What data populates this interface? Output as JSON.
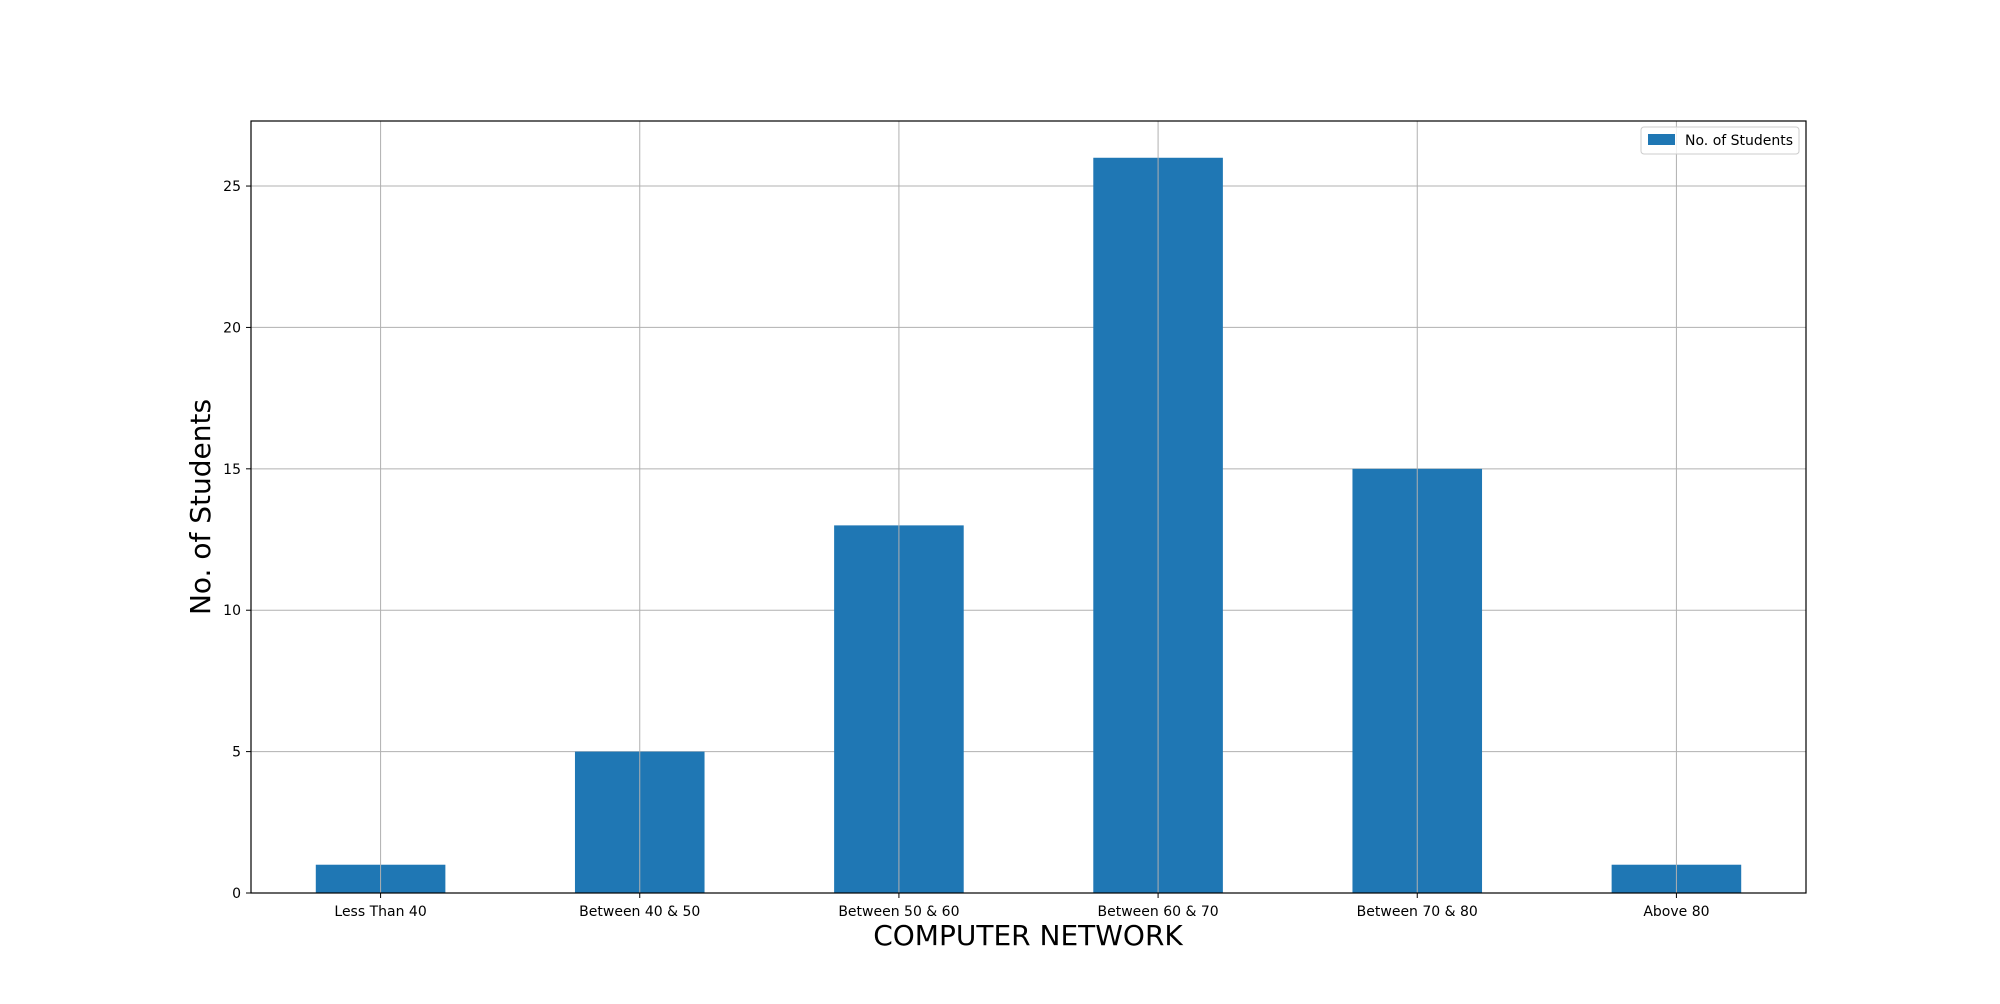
{
  "chart_data": {
    "type": "bar",
    "categories": [
      "Less Than 40",
      "Between 40 & 50",
      "Between 50 & 60",
      "Between 60 & 70",
      "Between 70 & 80",
      "Above 80"
    ],
    "series": [
      {
        "name": "No. of Students",
        "values": [
          1,
          5,
          13,
          26,
          15,
          1
        ]
      }
    ],
    "xlabel": "COMPUTER NETWORK",
    "ylabel": "No. of Students",
    "ylim": [
      0,
      27.3
    ],
    "yticks": [
      0,
      5,
      10,
      15,
      20,
      25
    ],
    "grid": true,
    "legend_position": "top-right",
    "bar_color": "#1f77b4",
    "grid_color": "#b0b0b0"
  }
}
